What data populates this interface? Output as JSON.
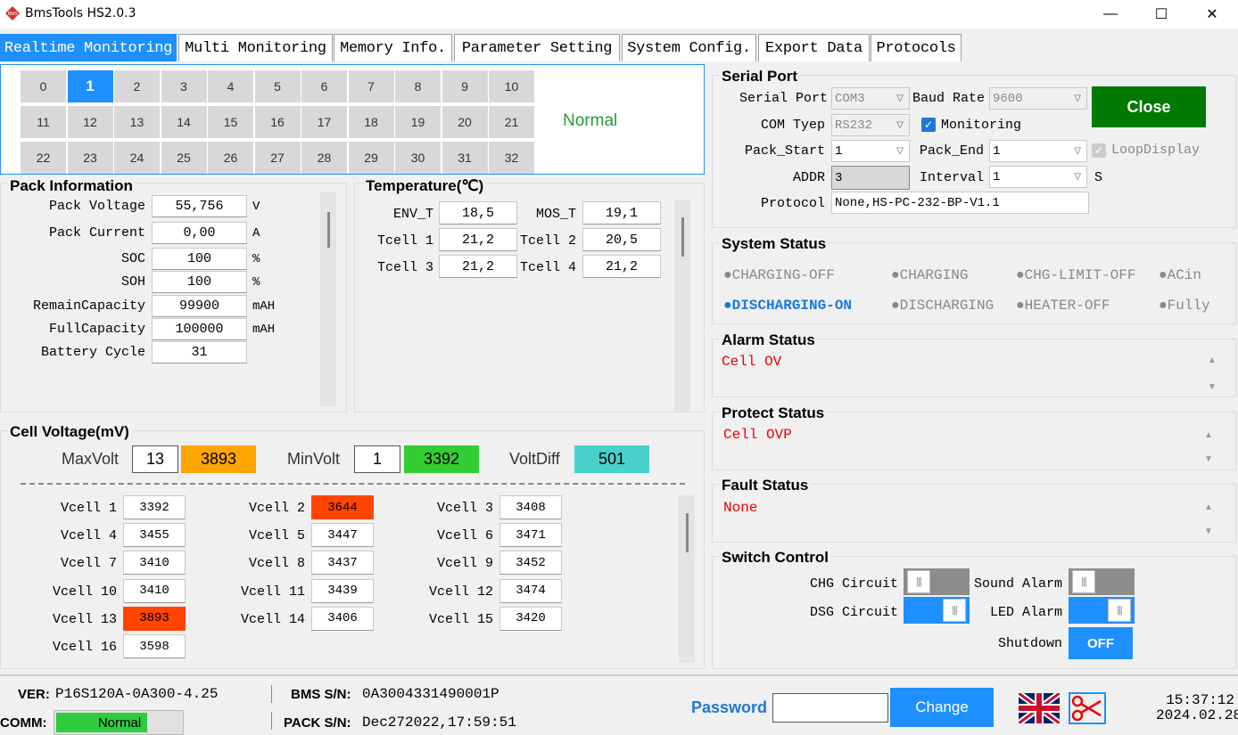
{
  "window": {
    "title": "BmsTools HS2.0.3",
    "icon_text": "BMS",
    "min": "—",
    "max": "☐",
    "close": "✕"
  },
  "tabs": [
    "Realtime Monitoring",
    "Multi Monitoring",
    "Memory Info.",
    "Parameter Setting",
    "System Config.",
    "Export Data",
    "Protocols"
  ],
  "pack_selector": {
    "rows": [
      [
        "0",
        "1",
        "2",
        "3",
        "4",
        "5",
        "6",
        "7",
        "8",
        "9",
        "10"
      ],
      [
        "11",
        "12",
        "13",
        "14",
        "15",
        "16",
        "17",
        "18",
        "19",
        "20",
        "21"
      ],
      [
        "22",
        "23",
        "24",
        "25",
        "26",
        "27",
        "28",
        "29",
        "30",
        "31",
        "32"
      ]
    ],
    "selected": "1",
    "status": "Normal",
    "status_color": "#22a032"
  },
  "pack_info": {
    "title": "Pack Information",
    "fields": [
      {
        "label": "Pack Voltage",
        "value": "55,756",
        "unit": "V"
      },
      {
        "label": "Pack Current",
        "value": "0,00",
        "unit": "A"
      },
      {
        "label": "SOC",
        "value": "100",
        "unit": "%"
      },
      {
        "label": "SOH",
        "value": "100",
        "unit": "%"
      },
      {
        "label": "RemainCapacity",
        "value": "99900",
        "unit": "mAH"
      },
      {
        "label": "FullCapacity",
        "value": "100000",
        "unit": "mAH"
      },
      {
        "label": "Battery Cycle",
        "value": "31",
        "unit": ""
      }
    ]
  },
  "temperature": {
    "title": "Temperature(℃)",
    "fields": [
      {
        "label": "ENV_T",
        "value": "18,5"
      },
      {
        "label": "MOS_T",
        "value": "19,1"
      },
      {
        "label": "Tcell 1",
        "value": "21,2"
      },
      {
        "label": "Tcell 2",
        "value": "20,5"
      },
      {
        "label": "Tcell 3",
        "value": "21,2"
      },
      {
        "label": "Tcell 4",
        "value": "21,2"
      }
    ]
  },
  "cell_voltage": {
    "title": "Cell Voltage(mV)",
    "max_label": "MaxVolt",
    "max_cell": "13",
    "max_value": "3893",
    "max_color": "#ffa500",
    "min_label": "MinVolt",
    "min_cell": "1",
    "min_value": "3392",
    "min_color": "#32cd32",
    "diff_label": "VoltDiff",
    "diff_value": "501",
    "diff_color": "#48d1cc",
    "cells": [
      {
        "label": "Vcell 1",
        "value": "3392",
        "hl": ""
      },
      {
        "label": "Vcell 2",
        "value": "3644",
        "hl": "#ff4500"
      },
      {
        "label": "Vcell 3",
        "value": "3408",
        "hl": ""
      },
      {
        "label": "Vcell 4",
        "value": "3455",
        "hl": ""
      },
      {
        "label": "Vcell 5",
        "value": "3447",
        "hl": ""
      },
      {
        "label": "Vcell 6",
        "value": "3471",
        "hl": ""
      },
      {
        "label": "Vcell 7",
        "value": "3410",
        "hl": ""
      },
      {
        "label": "Vcell 8",
        "value": "3437",
        "hl": ""
      },
      {
        "label": "Vcell 9",
        "value": "3452",
        "hl": ""
      },
      {
        "label": "Vcell 10",
        "value": "3410",
        "hl": ""
      },
      {
        "label": "Vcell 11",
        "value": "3439",
        "hl": ""
      },
      {
        "label": "Vcell 12",
        "value": "3474",
        "hl": ""
      },
      {
        "label": "Vcell 13",
        "value": "3893",
        "hl": "#ff4500"
      },
      {
        "label": "Vcell 14",
        "value": "3406",
        "hl": ""
      },
      {
        "label": "Vcell 15",
        "value": "3420",
        "hl": ""
      },
      {
        "label": "Vcell 16",
        "value": "3598",
        "hl": ""
      }
    ]
  },
  "serial": {
    "title": "Serial Port",
    "port_label": "Serial Port",
    "port_value": "COM3",
    "baud_label": "Baud Rate",
    "baud_value": "9600",
    "type_label": "COM Tyep",
    "type_value": "RS232",
    "monitoring_label": "Monitoring",
    "start_label": "Pack_Start",
    "start_value": "1",
    "end_label": "Pack_End",
    "end_value": "1",
    "loop_label": "LoopDisplay",
    "addr_label": "ADDR",
    "addr_value": "3",
    "interval_label": "Interval",
    "interval_value": "1",
    "interval_unit": "S",
    "protocol_label": "Protocol",
    "protocol_value": "None,HS-PC-232-BP-V1.1",
    "close_label": "Close",
    "close_color": "#007a00"
  },
  "system_status": {
    "title": "System Status",
    "items": [
      {
        "text": "●CHARGING-OFF",
        "on": false
      },
      {
        "text": "●CHARGING",
        "on": false
      },
      {
        "text": "●CHG-LIMIT-OFF",
        "on": false
      },
      {
        "text": "●ACin",
        "on": false
      },
      {
        "text": "●DISCHARGING-ON",
        "on": true
      },
      {
        "text": "●DISCHARGING",
        "on": false
      },
      {
        "text": "●HEATER-OFF",
        "on": false
      },
      {
        "text": "●Fully",
        "on": false
      }
    ]
  },
  "alarm": {
    "title": "Alarm Status",
    "text": "Cell OV"
  },
  "protect": {
    "title": "Protect Status",
    "text": "Cell OVP"
  },
  "fault": {
    "title": "Fault Status",
    "text": "None"
  },
  "switch": {
    "title": "Switch Control",
    "chg_label": "CHG Circuit",
    "chg_on": false,
    "dsg_label": "DSG Circuit",
    "dsg_on": true,
    "sound_label": "Sound Alarm",
    "sound_on": false,
    "led_label": "LED Alarm",
    "led_on": true,
    "shutdown_label": "Shutdown",
    "shutdown_btn": "OFF"
  },
  "footer": {
    "ver_label": "VER:",
    "ver_value": "P16S120A-0A300-4.25",
    "comm_label": "COMM:",
    "comm_value": "Normal",
    "bms_label": "BMS S/N:",
    "bms_value": "0A3004331490001P",
    "pack_label": "PACK S/N:",
    "pack_value": "Dec272022,17:59:51",
    "password_label": "Password",
    "password_value": "",
    "change_label": "Change",
    "time": "15:37:12",
    "date": "2024.02.28"
  },
  "colors": {
    "accent": "#1e90ff",
    "red": "#e00000",
    "green": "#007a00"
  }
}
